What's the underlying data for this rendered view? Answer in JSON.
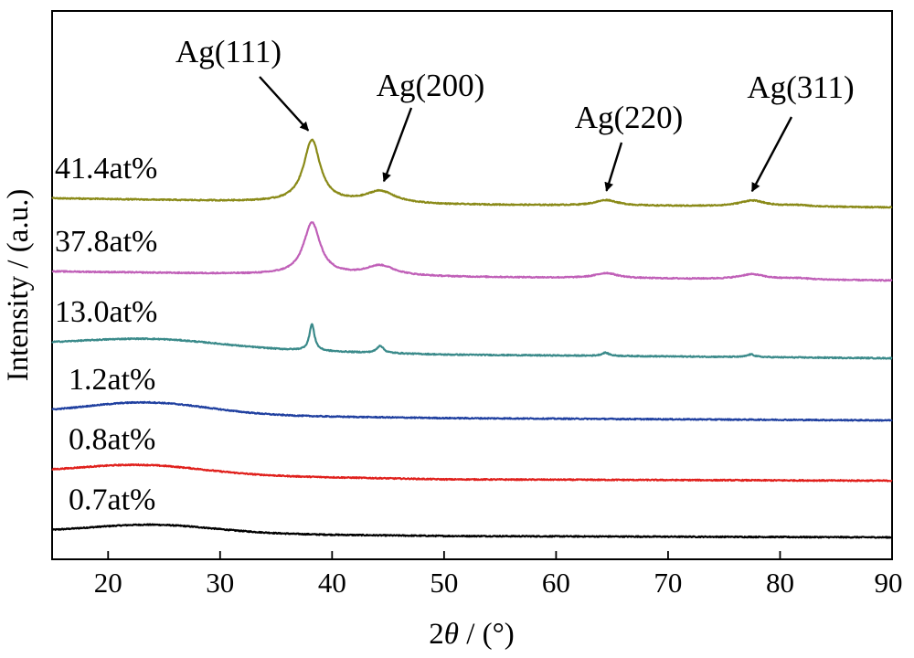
{
  "chart_data": {
    "type": "line",
    "xlabel_parts": {
      "prefix": "2",
      "symbol": "θ",
      "suffix": " / (°)"
    },
    "ylabel": "Intensity / (a.u.)",
    "xlim": [
      15,
      90
    ],
    "xticks": [
      20,
      30,
      40,
      50,
      60,
      70,
      80,
      90
    ],
    "y_ticks_shown": false,
    "grid": false,
    "series": [
      {
        "name": "0.7at%",
        "color": "#000000",
        "offset": 0,
        "baseline": [
          [
            15,
            0.0
          ],
          [
            50,
            -0.45
          ],
          [
            90,
            -0.6
          ]
        ],
        "humps": [
          [
            24,
            0.9,
            5.5
          ]
        ],
        "peaks": []
      },
      {
        "name": "0.8at%",
        "color": "#e0201c",
        "offset": 6.5,
        "baseline": [
          [
            15,
            0.0
          ],
          [
            50,
            -0.75
          ],
          [
            90,
            -0.9
          ]
        ],
        "humps": [
          [
            23,
            1.0,
            5.5
          ]
        ],
        "peaks": []
      },
      {
        "name": "1.2at%",
        "color": "#2040a0",
        "offset": 13.0,
        "baseline": [
          [
            15,
            0.0
          ],
          [
            50,
            -0.55
          ],
          [
            90,
            -0.8
          ]
        ],
        "humps": [
          [
            23.5,
            1.3,
            5.5
          ]
        ],
        "peaks": []
      },
      {
        "name": "13.0at%",
        "color": "#3a8a8a",
        "offset": 20.5,
        "baseline": [
          [
            15,
            0.0
          ],
          [
            50,
            -1.1
          ],
          [
            90,
            -1.5
          ]
        ],
        "humps": [
          [
            24,
            0.9,
            6.0
          ]
        ],
        "peaks": [
          [
            38.2,
            2.9,
            0.28
          ],
          [
            44.3,
            0.8,
            0.35
          ],
          [
            64.4,
            0.35,
            0.4
          ],
          [
            77.4,
            0.3,
            0.4
          ]
        ]
      },
      {
        "name": "37.8at%",
        "color": "#c060b8",
        "offset": 28.5,
        "baseline": [
          [
            15,
            0.0
          ],
          [
            50,
            -0.6
          ],
          [
            90,
            -1.0
          ]
        ],
        "humps": [],
        "peaks": [
          [
            38.2,
            5.7,
            0.9
          ],
          [
            44.3,
            1.1,
            1.6
          ],
          [
            64.5,
            0.55,
            1.2
          ],
          [
            77.5,
            0.55,
            1.4
          ],
          [
            81.5,
            0.15,
            1.5
          ]
        ]
      },
      {
        "name": "41.4at%",
        "color": "#8a8a18",
        "offset": 36.5,
        "baseline": [
          [
            15,
            0.0
          ],
          [
            50,
            -0.7
          ],
          [
            90,
            -1.0
          ]
        ],
        "humps": [],
        "peaks": [
          [
            38.2,
            6.8,
            0.9
          ],
          [
            44.3,
            1.3,
            1.6
          ],
          [
            64.5,
            0.6,
            1.2
          ],
          [
            77.5,
            0.65,
            1.4
          ],
          [
            81.5,
            0.15,
            1.5
          ]
        ]
      }
    ],
    "annotations": [
      {
        "text": "Ag(111)",
        "peak_x": 38.2,
        "series": "41.4at%"
      },
      {
        "text": "Ag(200)",
        "peak_x": 44.3,
        "series": "41.4at%"
      },
      {
        "text": "Ag(220)",
        "peak_x": 64.5,
        "series": "41.4at%"
      },
      {
        "text": "Ag(311)",
        "peak_x": 77.5,
        "series": "41.4at%"
      }
    ]
  }
}
